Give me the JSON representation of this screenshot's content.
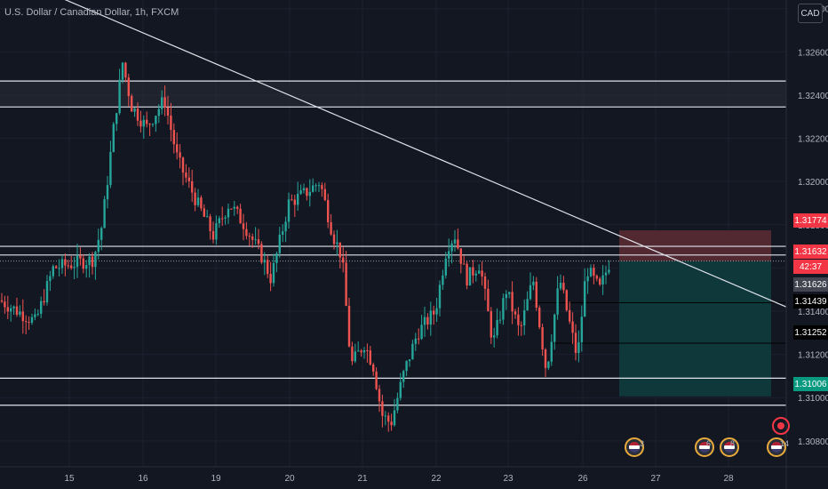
{
  "header": {
    "title": "U.S. Dollar / Canadian Dollar, 1h, FXCM",
    "currency": "CAD"
  },
  "price_axis": {
    "ticks": [
      "1.32800",
      "1.32600",
      "1.32400",
      "1.32200",
      "1.32000",
      "1.31800",
      "1.31600",
      "1.31400",
      "1.31200",
      "1.31000",
      "1.30800"
    ],
    "labels": {
      "stop_price": "1.31774",
      "current_price": "1.31632",
      "countdown": "42:37",
      "crosshair_price": "1.31626",
      "level_1": "1.31439",
      "level_2": "1.31252",
      "target_price": "1.31006"
    }
  },
  "time_axis": {
    "ticks": [
      "15",
      "16",
      "19",
      "20",
      "21",
      "22",
      "23",
      "26",
      "27",
      "28"
    ]
  },
  "events": [
    {
      "icon": "us-flag-icon",
      "count": "3"
    },
    {
      "icon": "us-flag-icon",
      "count": "6"
    },
    {
      "icon": "us-flag-icon",
      "count": "8"
    },
    {
      "icon": "us-flag-icon",
      "count": "14"
    }
  ],
  "colors": {
    "background": "#131722",
    "bullish": "#26a69a",
    "bearish": "#ef5350",
    "stop_zone": "#5a2a33",
    "target_zone": "#0f3a3c",
    "line": "#e0e3eb"
  },
  "chart_data": {
    "type": "candlestick",
    "timeframe": "1h",
    "ylim": [
      1.3068,
      1.3284
    ],
    "horizontal_levels": [
      1.32465,
      1.32345,
      1.317,
      1.3166,
      1.3109,
      1.30965
    ],
    "trendline": {
      "from": [
        "2020-10-15T02:00",
        1.3297
      ],
      "to": [
        "2020-10-28T10:00",
        1.3142
      ]
    },
    "position": {
      "side": "short",
      "entry": 1.31632,
      "stop": 1.31774,
      "target": 1.31006
    },
    "swing_highs": [
      1.3259,
      1.3206,
      1.3176
    ],
    "swing_lows": [
      1.3082,
      1.3109
    ]
  }
}
